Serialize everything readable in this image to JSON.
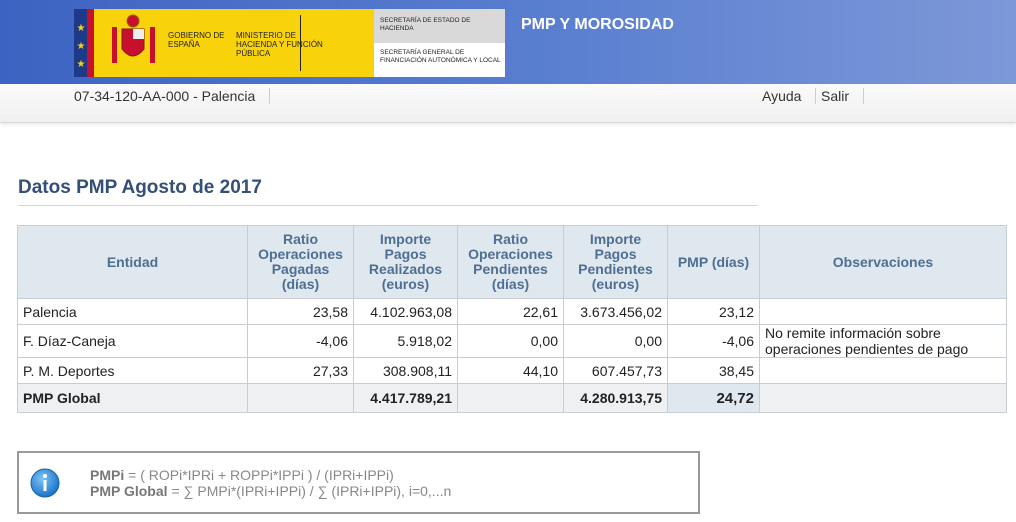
{
  "header": {
    "logo": {
      "gobierno": "GOBIERNO DE ESPAÑA",
      "ministerio": "MINISTERIO DE HACIENDA Y FUNCIÓN PÚBLICA",
      "secretaria_estado": "SECRETARÍA DE ESTADO DE HACIENDA",
      "secretaria_general": "SECRETARÍA GENERAL DE FINANCIACIÓN AUTONÓMICA Y LOCAL"
    },
    "title": "PMP Y MOROSIDAD"
  },
  "nav": {
    "entity": "07-34-120-AA-000 - Palencia",
    "links": [
      "Ayuda",
      "Salir"
    ]
  },
  "heading": "Datos PMP Agosto de 2017",
  "table": {
    "columns": [
      "Entidad",
      "Ratio Operaciones Pagadas (días)",
      "Importe Pagos Realizados (euros)",
      "Ratio Operaciones Pendientes (días)",
      "Importe Pagos Pendientes (euros)",
      "PMP (días)",
      "Observaciones"
    ],
    "rows": [
      {
        "entidad": "Palencia",
        "ratio_pagadas": "23,58",
        "importe_realizados": "4.102.963,08",
        "ratio_pendientes": "22,61",
        "importe_pendientes": "3.673.456,02",
        "pmp": "23,12"
      },
      {
        "entidad": "F. Díaz-Caneja",
        "ratio_pagadas": "-4,06",
        "importe_realizados": "5.918,02",
        "ratio_pendientes": "0,00",
        "importe_pendientes": "0,00",
        "pmp": "-4,06",
        "observaciones": "No remite información sobre operaciones pendientes de pago"
      },
      {
        "entidad": "P. M. Deportes",
        "ratio_pagadas": "27,33",
        "importe_realizados": "308.908,11",
        "ratio_pendientes": "44,10",
        "importe_pendientes": "607.457,73",
        "pmp": "38,45"
      }
    ],
    "total": {
      "entidad": "PMP Global",
      "importe_realizados": "4.417.789,21",
      "importe_pendientes": "4.280.913,75",
      "pmp": "24,72"
    }
  },
  "formula": [
    {
      "term": "PMPi",
      "expr": "= ( ROPi*IPRi + ROPPi*IPPi ) / (IPRi+IPPi)"
    },
    {
      "term": "PMP Global",
      "expr": "= ∑ PMPi*(IPRi+IPPi) / ∑ (IPRi+IPPi), i=0,...n"
    }
  ]
}
